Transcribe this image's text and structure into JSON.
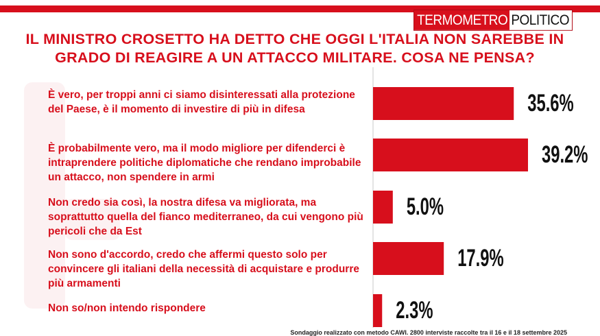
{
  "brand": {
    "logo_part1": "TERMOMETRO",
    "logo_part2": "POLITICO",
    "accent": "#d70f1c"
  },
  "title": "IL MINISTRO CROSETTO HA DETTO CHE OGGI L'ITALIA NON SAREBBE IN GRADO DI REAGIRE A UN ATTACCO MILITARE. COSA NE PENSA?",
  "chart_data": {
    "type": "bar",
    "orientation": "horizontal",
    "title": "IL MINISTRO CROSETTO HA DETTO CHE OGGI L'ITALIA NON SAREBBE IN GRADO DI REAGIRE A UN ATTACCO MILITARE. COSA NE PENSA?",
    "categories": [
      "È vero, per troppi anni ci siamo disinteressati alla protezione del Paese, è il momento di investire di più in difesa",
      "È probabilmente vero, ma il modo migliore per difenderci è intraprendere politiche diplomatiche che rendano improbabile un attacco, non spendere in armi",
      "Non credo sia così, la nostra difesa va migliorata, ma soprattutto quella del fianco mediterraneo, da cui vengono più pericoli che da Est",
      "Non sono d'accordo, credo che affermi questo solo per convincere gli italiani della necessità di acquistare e produrre più armamenti",
      "Non so/non intendo rispondere"
    ],
    "values": [
      35.6,
      39.2,
      5.0,
      17.9,
      2.3
    ],
    "value_labels": [
      "35.6%",
      "39.2%",
      "5.0%",
      "17.9%",
      "2.3%"
    ],
    "unit": "%",
    "bar_color": "#d70f1c",
    "grid": false,
    "legend": "none"
  },
  "footnote": "Sondaggio realizzato con metodo CAWI. 2800 interviste raccolte tra il 16 e il 18 settembre 2025"
}
